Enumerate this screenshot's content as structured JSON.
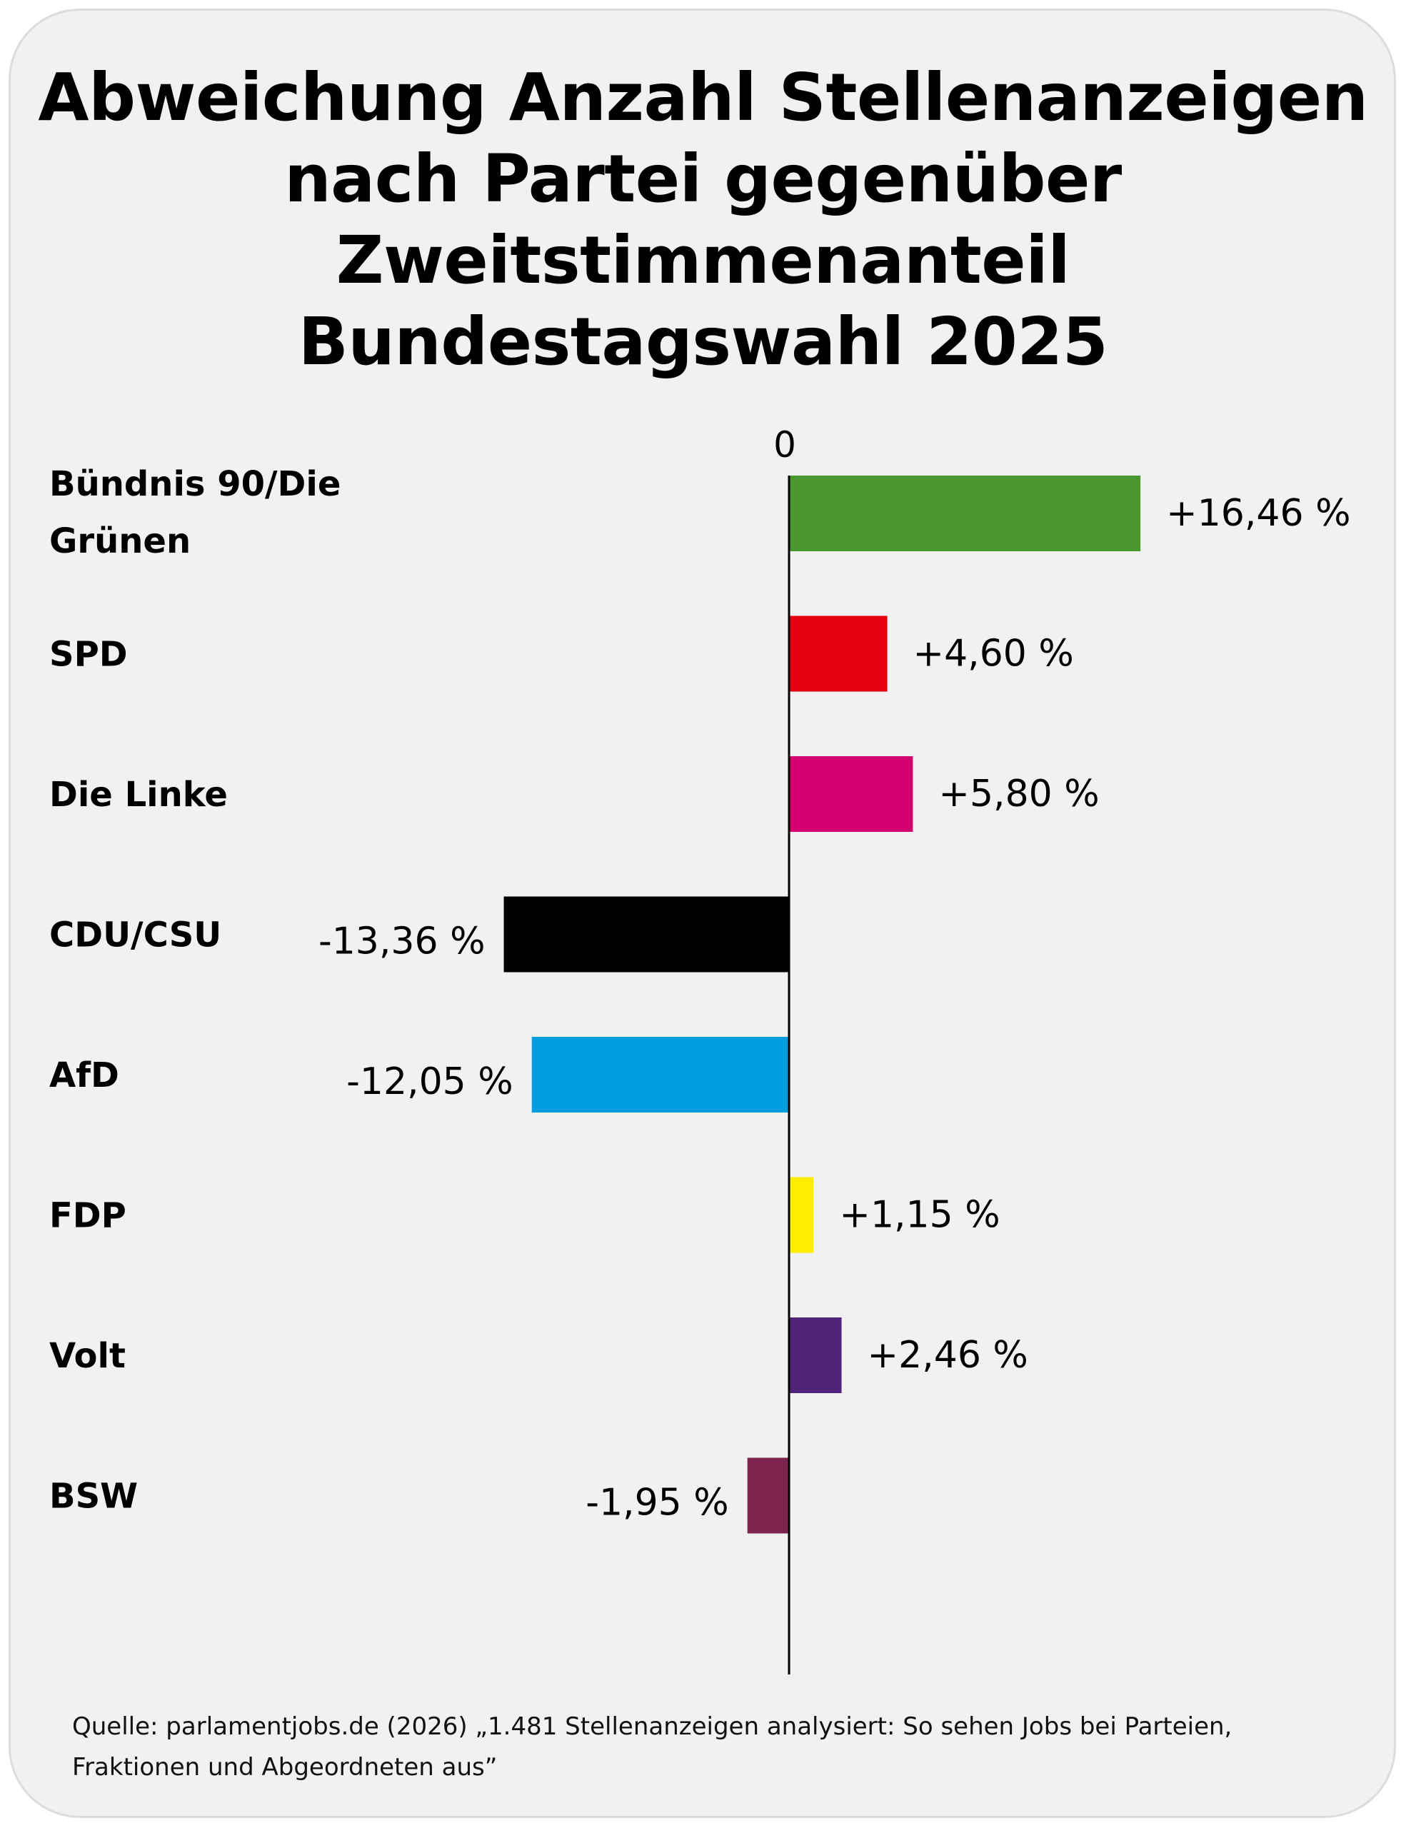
{
  "title_lines": [
    "Abweichung Anzahl Stellenanzeigen",
    "nach Partei gegenüber",
    "Zweitstimmenanteil",
    "Bundestagswahl 2025"
  ],
  "source_lines": [
    "Quelle: parlamentjobs.de (2026) „1.481 Stellenanzeigen analysiert: So sehen Jobs bei Parteien,",
    "Fraktionen und Abgeordneten aus”"
  ],
  "chart_data": {
    "type": "bar",
    "orientation": "horizontal",
    "title": "Abweichung Anzahl Stellenanzeigen nach Partei gegenüber Zweitstimmenanteil Bundestagswahl 2025",
    "zero_label": "0",
    "unit": "%",
    "categories": [
      [
        "Bündnis 90/Die",
        "Grünen"
      ],
      [
        "SPD"
      ],
      [
        "Die Linke"
      ],
      [
        "CDU/CSU"
      ],
      [
        "AfD"
      ],
      [
        "FDP"
      ],
      [
        "Volt"
      ],
      [
        "BSW"
      ]
    ],
    "values": [
      16.46,
      4.6,
      5.8,
      -13.36,
      -12.05,
      1.15,
      2.46,
      -1.95
    ],
    "value_labels": [
      "+16,46 %",
      "+4,60 %",
      "+5,80 %",
      "-13,36 %",
      "-12,05 %",
      "+1,15 %",
      "+2,46 %",
      "-1,95 %"
    ],
    "colors": [
      "#4a972d",
      "#e3000f",
      "#d20071",
      "#000000",
      "#009ee0",
      "#ffed00",
      "#502379",
      "#7d254f"
    ],
    "grid": false
  }
}
